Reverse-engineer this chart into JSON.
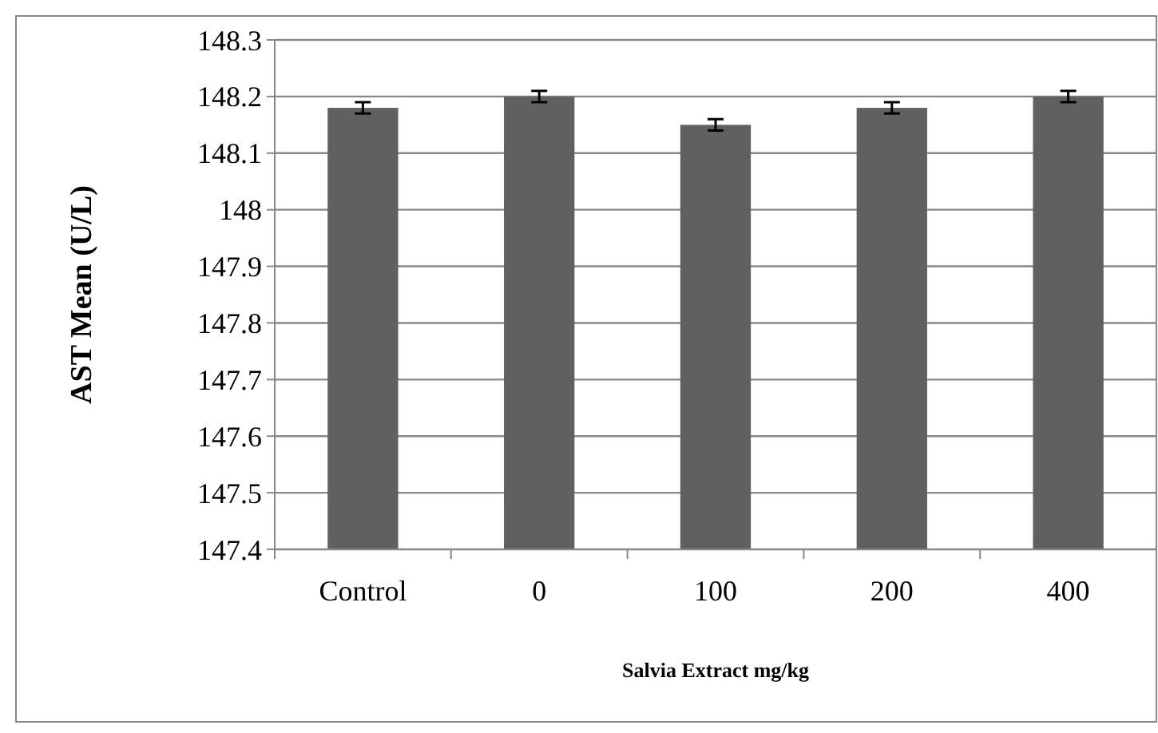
{
  "chart_data": {
    "type": "bar",
    "xlabel": "Salvia Extract mg/kg",
    "ylabel": "AST Mean (U/L)",
    "categories": [
      "Control",
      "0",
      "100",
      "200",
      "400"
    ],
    "values": [
      148.18,
      148.2,
      148.15,
      148.18,
      148.2
    ],
    "errors": [
      0.01,
      0.01,
      0.01,
      0.01,
      0.01
    ],
    "color": "#606060",
    "ylim": [
      147.4,
      148.3
    ],
    "yticks": [
      {
        "value": 147.4,
        "label": "147.4"
      },
      {
        "value": 147.5,
        "label": "147.5"
      },
      {
        "value": 147.6,
        "label": "147.6"
      },
      {
        "value": 147.7,
        "label": "147.7"
      },
      {
        "value": 147.8,
        "label": "147.8"
      },
      {
        "value": 147.9,
        "label": "147.9"
      },
      {
        "value": 148,
        "label": "148"
      },
      {
        "value": 148.1,
        "label": "148.1"
      },
      {
        "value": 148.2,
        "label": "148.2"
      },
      {
        "value": 148.3,
        "label": "148.3"
      }
    ],
    "grid": "y"
  }
}
